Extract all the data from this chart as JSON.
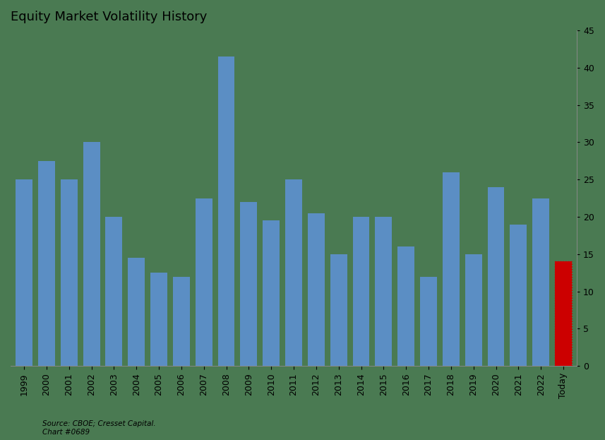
{
  "title": "Equity Market Volatility History",
  "categories": [
    "1999",
    "2000",
    "2001",
    "2002",
    "2003",
    "2004",
    "2005",
    "2006",
    "2007",
    "2008",
    "2009",
    "2010",
    "2011",
    "2012",
    "2013",
    "2014",
    "2015",
    "2016",
    "2017",
    "2018",
    "2019",
    "2020",
    "2021",
    "2022",
    "Today"
  ],
  "values": [
    25.0,
    27.5,
    25.0,
    30.0,
    20.0,
    14.5,
    12.5,
    12.0,
    22.5,
    41.5,
    22.0,
    19.5,
    25.0,
    20.5,
    15.0,
    20.0,
    20.0,
    16.0,
    12.0,
    26.0,
    15.0,
    24.0,
    19.0,
    22.5,
    14.0
  ],
  "bar_colors": [
    "#5b8ec4",
    "#5b8ec4",
    "#5b8ec4",
    "#5b8ec4",
    "#5b8ec4",
    "#5b8ec4",
    "#5b8ec4",
    "#5b8ec4",
    "#5b8ec4",
    "#5b8ec4",
    "#5b8ec4",
    "#5b8ec4",
    "#5b8ec4",
    "#5b8ec4",
    "#5b8ec4",
    "#5b8ec4",
    "#5b8ec4",
    "#5b8ec4",
    "#5b8ec4",
    "#5b8ec4",
    "#5b8ec4",
    "#5b8ec4",
    "#5b8ec4",
    "#5b8ec4",
    "#cc0000"
  ],
  "ylim": [
    0,
    45
  ],
  "yticks": [
    0,
    5,
    10,
    15,
    20,
    25,
    30,
    35,
    40,
    45
  ],
  "background_color": "#4a7a52",
  "source_text": "Source: CBOE; Cresset Capital.\nChart #0689",
  "title_fontsize": 13,
  "tick_fontsize": 9,
  "source_fontsize": 7.5
}
